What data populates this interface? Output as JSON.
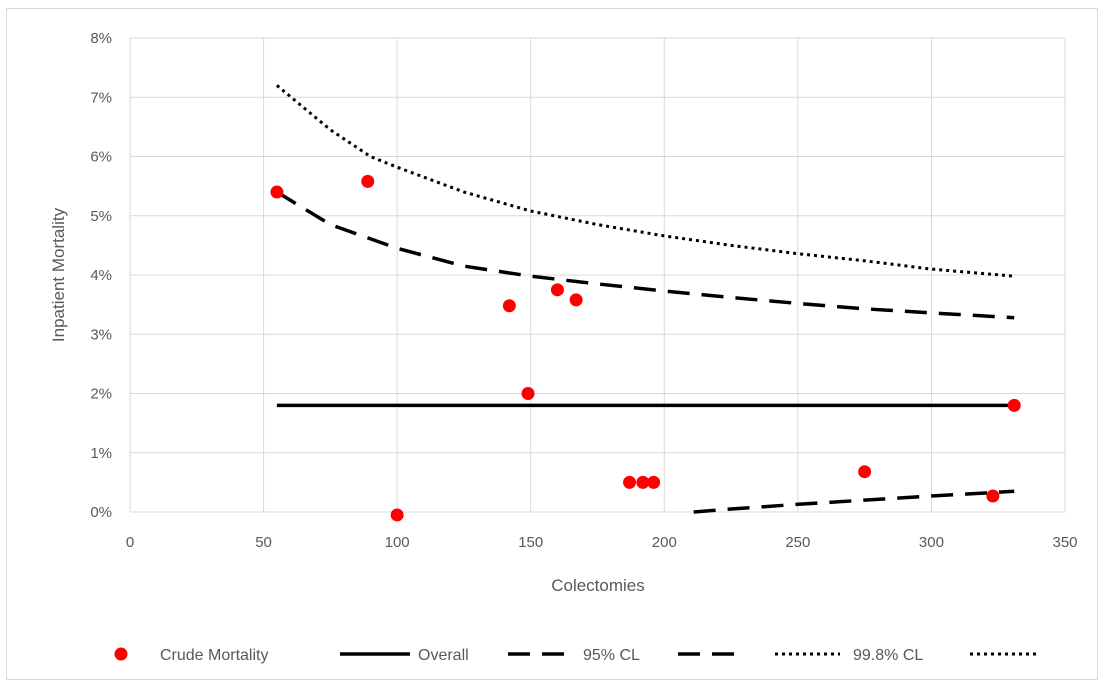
{
  "chart_data": {
    "type": "scatter",
    "title": "",
    "xlabel": "Colectomies",
    "ylabel": "Inpatient Mortality",
    "xlim": [
      0,
      350
    ],
    "ylim": [
      0,
      8
    ],
    "x_ticks": [
      0,
      50,
      100,
      150,
      200,
      250,
      300,
      350
    ],
    "y_ticks": [
      0,
      1,
      2,
      3,
      4,
      5,
      6,
      7,
      8
    ],
    "y_tick_suffix": "%",
    "grid": true,
    "legend_position": "bottom",
    "series": [
      {
        "name": "Crude Mortality",
        "kind": "points",
        "color": "#ff0000",
        "points": [
          [
            55,
            5.4
          ],
          [
            89,
            5.58
          ],
          [
            100,
            -0.05
          ],
          [
            142,
            3.48
          ],
          [
            149,
            2.0
          ],
          [
            160,
            3.75
          ],
          [
            167,
            3.58
          ],
          [
            187,
            0.5
          ],
          [
            192,
            0.5
          ],
          [
            196,
            0.5
          ],
          [
            275,
            0.68
          ],
          [
            323,
            0.27
          ],
          [
            331,
            1.8
          ]
        ]
      },
      {
        "name": "Overall",
        "kind": "line",
        "style": "solid",
        "color": "#000000",
        "points": [
          [
            55,
            1.8
          ],
          [
            331,
            1.8
          ]
        ]
      },
      {
        "name": "95% CL",
        "kind": "line",
        "style": "dashed",
        "color": "#000000",
        "points": [
          [
            55,
            5.4
          ],
          [
            75,
            4.85
          ],
          [
            100,
            4.45
          ],
          [
            125,
            4.15
          ],
          [
            150,
            3.98
          ],
          [
            175,
            3.85
          ],
          [
            200,
            3.73
          ],
          [
            225,
            3.62
          ],
          [
            250,
            3.52
          ],
          [
            275,
            3.43
          ],
          [
            300,
            3.36
          ],
          [
            331,
            3.28
          ]
        ]
      },
      {
        "name": "95% CL",
        "kind": "line",
        "style": "dashed",
        "color": "#000000",
        "points": [
          [
            211,
            0.0
          ],
          [
            225,
            0.05
          ],
          [
            250,
            0.13
          ],
          [
            275,
            0.2
          ],
          [
            300,
            0.27
          ],
          [
            331,
            0.35
          ]
        ]
      },
      {
        "name": "99.8% CL",
        "kind": "line",
        "style": "dotted",
        "color": "#000000",
        "points": [
          [
            55,
            7.2
          ],
          [
            75,
            6.45
          ],
          [
            90,
            6.0
          ],
          [
            100,
            5.82
          ],
          [
            125,
            5.4
          ],
          [
            150,
            5.08
          ],
          [
            175,
            4.85
          ],
          [
            200,
            4.66
          ],
          [
            225,
            4.5
          ],
          [
            250,
            4.36
          ],
          [
            275,
            4.24
          ],
          [
            300,
            4.1
          ],
          [
            331,
            3.98
          ]
        ]
      }
    ],
    "legend": [
      {
        "label": "Crude Mortality",
        "symbol": "dot"
      },
      {
        "label": "Overall",
        "symbol": "solid"
      },
      {
        "label": "95% CL",
        "symbol": "dashed"
      },
      {
        "label": "99.8% CL",
        "symbol": "dotted"
      }
    ]
  }
}
